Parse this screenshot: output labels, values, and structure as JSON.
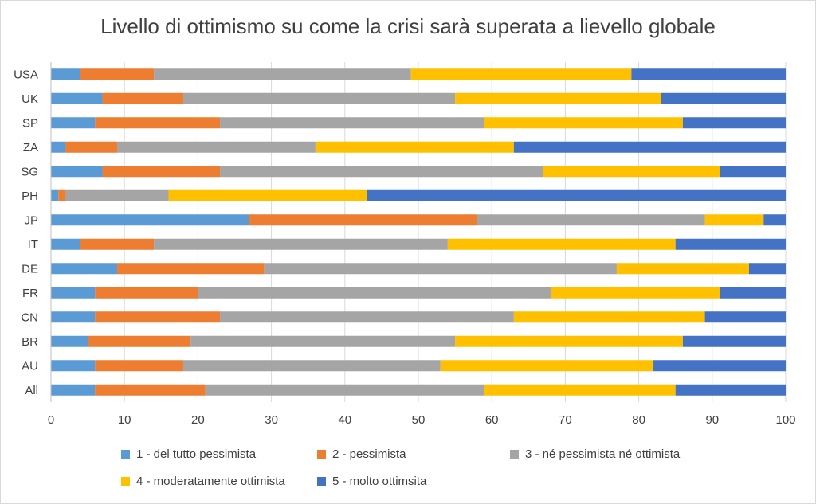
{
  "chart_data": {
    "type": "bar",
    "orientation": "horizontal",
    "stacked": true,
    "title": "Livello di ottimismo su come la crisi sarà superata a lievello globale",
    "xlabel": "",
    "ylabel": "",
    "xlim": [
      0,
      100
    ],
    "x_ticks": [
      "0",
      "10",
      "20",
      "30",
      "40",
      "50",
      "60",
      "70",
      "80",
      "90",
      "100"
    ],
    "grid": "vertical",
    "legend_position": "bottom",
    "categories": [
      "USA",
      "UK",
      "SP",
      "ZA",
      "SG",
      "PH",
      "JP",
      "IT",
      "DE",
      "FR",
      "CN",
      "BR",
      "AU",
      "All"
    ],
    "series": [
      {
        "name": "1 - del tutto pessimista",
        "color": "#5b9bd5",
        "values": [
          4,
          7,
          6,
          2,
          7,
          1,
          27,
          4,
          9,
          6,
          6,
          5,
          6,
          6
        ]
      },
      {
        "name": "2 - pessimista",
        "color": "#ed7d31",
        "values": [
          10,
          11,
          17,
          7,
          16,
          1,
          31,
          10,
          20,
          14,
          17,
          14,
          12,
          15
        ]
      },
      {
        "name": "3 - né pessimista né ottimista",
        "color": "#a5a5a5",
        "values": [
          35,
          37,
          36,
          27,
          44,
          14,
          31,
          40,
          48,
          48,
          40,
          36,
          35,
          38
        ]
      },
      {
        "name": "4 - moderatamente ottimista",
        "color": "#ffc000",
        "values": [
          30,
          28,
          27,
          27,
          24,
          27,
          8,
          31,
          18,
          23,
          26,
          31,
          29,
          26
        ]
      },
      {
        "name": "5 - molto ottimsita",
        "color": "#4472c4",
        "values": [
          21,
          17,
          14,
          37,
          9,
          57,
          3,
          15,
          5,
          9,
          11,
          14,
          18,
          15
        ]
      }
    ]
  }
}
